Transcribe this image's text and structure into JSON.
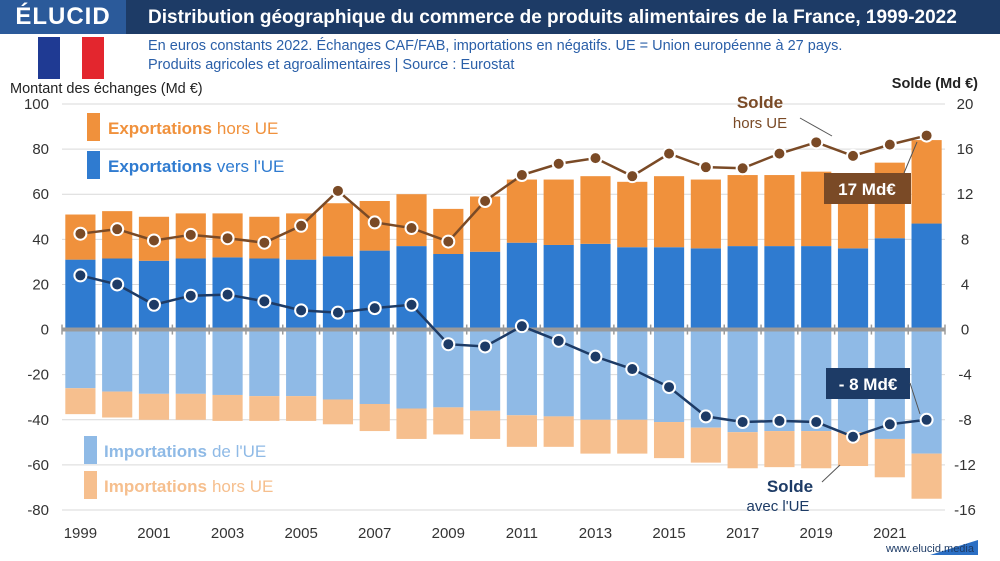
{
  "header": {
    "logo": "ÉLUCID",
    "title": "Distribution géographique du commerce de produits alimentaires de la France, 1999-2022",
    "subtitle_line1": "En euros constants 2022. Échanges CAF/FAB, importations en négatifs. UE = Union européenne à 27 pays.",
    "subtitle_line2": "Produits agricoles et agroalimentaires  |  Source : Eurostat",
    "website": "www.elucid.media"
  },
  "colors": {
    "header_bg": "#1d3b66",
    "export_ue": "#2f7bd0",
    "export_hors_ue": "#f0913c",
    "import_ue": "#8fbae6",
    "import_hors_ue": "#f6bf8e",
    "solde_hors_ue": "#7a4a26",
    "solde_ue": "#1d3b66",
    "flag_blue": "#1f3a93",
    "flag_white": "#ffffff",
    "flag_red": "#e3262e"
  },
  "chart_data": {
    "type": "bar",
    "ylabel": "Montant des échanges (Md €)",
    "y2label": "Solde (Md €)",
    "ylim": [
      -80,
      100
    ],
    "y2lim": [
      -16,
      20
    ],
    "yticks": [
      "100",
      "80",
      "60",
      "40",
      "20",
      "0",
      "-20",
      "-40",
      "-60",
      "-80"
    ],
    "y2ticks": [
      "20",
      "16",
      "12",
      "8",
      "4",
      "0",
      "-4",
      "-8",
      "-12",
      "-16"
    ],
    "x_tick_labels": [
      "1999",
      "2001",
      "2003",
      "2005",
      "2007",
      "2009",
      "2011",
      "2013",
      "2015",
      "2017",
      "2019",
      "2021"
    ],
    "grid": true,
    "categories": [
      1999,
      2000,
      2001,
      2002,
      2003,
      2004,
      2005,
      2006,
      2007,
      2008,
      2009,
      2010,
      2011,
      2012,
      2013,
      2014,
      2015,
      2016,
      2017,
      2018,
      2019,
      2020,
      2021,
      2022
    ],
    "series": [
      {
        "name": "Exportations vers l'UE",
        "axis": "left",
        "values": [
          31,
          31.5,
          30.5,
          31.5,
          32,
          31.5,
          31,
          32.5,
          35,
          37,
          33.5,
          34.5,
          38.5,
          37.5,
          38,
          36.5,
          36.5,
          36,
          37,
          37,
          37,
          36,
          40.5,
          47
        ]
      },
      {
        "name": "Exportations hors UE",
        "axis": "left",
        "values": [
          20,
          21,
          19.5,
          20,
          19.5,
          18.5,
          20.5,
          23.5,
          22,
          23,
          20,
          24.5,
          28,
          29,
          30,
          29,
          31.5,
          30.5,
          31.5,
          31.5,
          33,
          30.5,
          33.5,
          37
        ]
      },
      {
        "name": "Importations de l'UE",
        "axis": "left",
        "values": [
          -26,
          -27.5,
          -28.5,
          -28.5,
          -29,
          -29.5,
          -29.5,
          -31,
          -33,
          -35,
          -34.5,
          -36,
          -38,
          -38.5,
          -40,
          -40,
          -41,
          -43.5,
          -45.5,
          -45,
          -45,
          -45.5,
          -48.5,
          -55
        ]
      },
      {
        "name": "Importations hors UE",
        "axis": "left",
        "values": [
          -11.5,
          -11.5,
          -11.5,
          -11.5,
          -11.5,
          -11,
          -11,
          -11,
          -12,
          -13.5,
          -12,
          -12.5,
          -14,
          -13.5,
          -15,
          -15,
          -16,
          -15.5,
          -16,
          -16,
          -16.5,
          -15,
          -17,
          -20
        ]
      },
      {
        "name": "Solde hors UE",
        "axis": "right",
        "values": [
          8.5,
          8.9,
          7.9,
          8.4,
          8.1,
          7.7,
          9.2,
          12.3,
          9.5,
          9.0,
          7.8,
          11.4,
          13.7,
          14.7,
          15.2,
          13.6,
          15.6,
          14.4,
          14.3,
          15.6,
          16.6,
          15.4,
          16.4,
          17.2
        ]
      },
      {
        "name": "Solde avec l'UE",
        "axis": "right",
        "values": [
          4.8,
          4.0,
          2.2,
          3.0,
          3.1,
          2.5,
          1.7,
          1.5,
          1.9,
          2.2,
          -1.3,
          -1.5,
          0.3,
          -1.0,
          -2.4,
          -3.5,
          -5.1,
          -7.7,
          -8.2,
          -8.1,
          -8.2,
          -9.5,
          -8.4,
          -8.0
        ]
      }
    ],
    "legend": [
      {
        "strong": "Exportations",
        "light": "hors UE"
      },
      {
        "strong": "Exportations",
        "light": "vers l'UE"
      },
      {
        "strong": "Importations",
        "light": "de l'UE"
      },
      {
        "strong": "Importations",
        "light": "hors UE"
      }
    ],
    "annotations": {
      "solde_hors_ue_strong": "Solde",
      "solde_hors_ue_light": "hors UE",
      "solde_ue_strong": "Solde",
      "solde_ue_light": "avec l'UE",
      "badge_hors_ue": "17 Md€",
      "badge_ue": "- 8 Md€"
    }
  }
}
